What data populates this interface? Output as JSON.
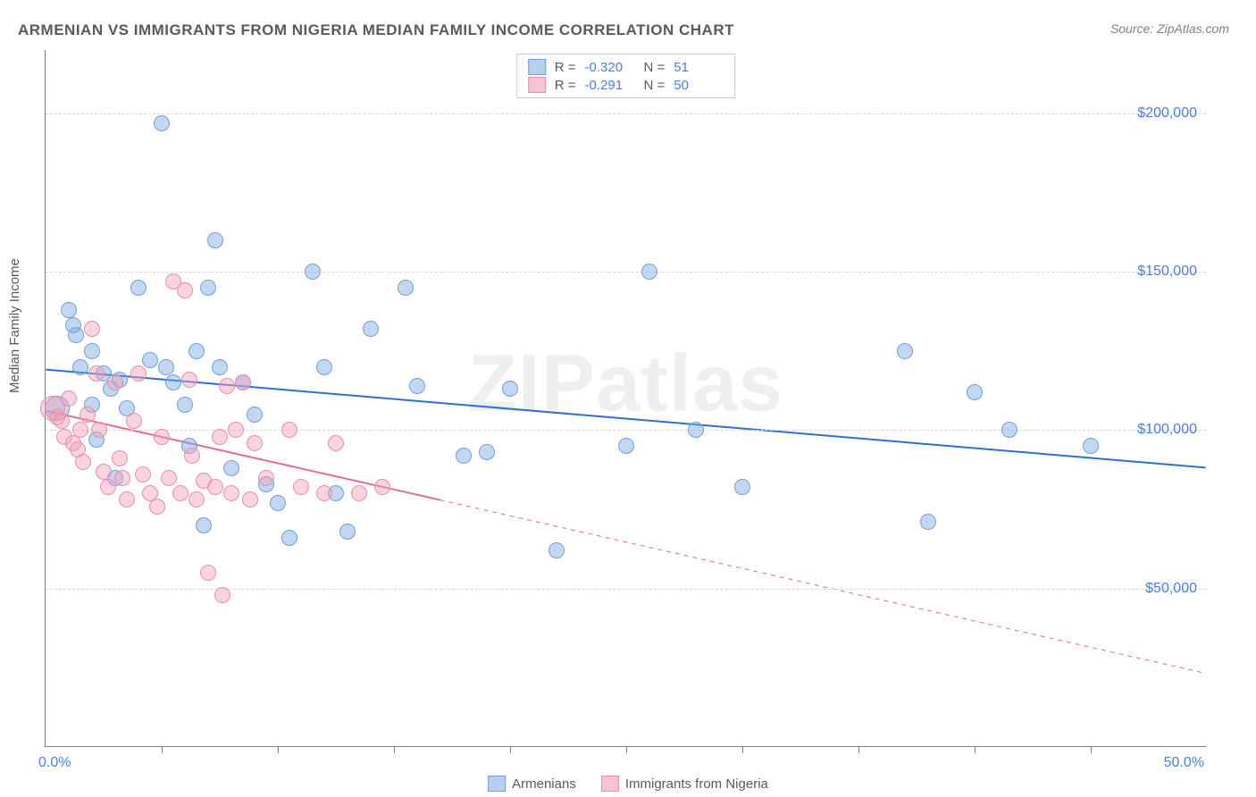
{
  "title": "ARMENIAN VS IMMIGRANTS FROM NIGERIA MEDIAN FAMILY INCOME CORRELATION CHART",
  "source": "Source: ZipAtlas.com",
  "ylabel": "Median Family Income",
  "watermark": "ZIPatlas",
  "chart": {
    "type": "scatter",
    "xlim": [
      0,
      50
    ],
    "ylim": [
      0,
      220000
    ],
    "x_left_label": "0.0%",
    "x_right_label": "50.0%",
    "x_ticks": [
      5,
      10,
      15,
      20,
      25,
      30,
      35,
      40,
      45
    ],
    "y_gridlines": [
      {
        "value": 50000,
        "label": "$50,000"
      },
      {
        "value": 100000,
        "label": "$100,000"
      },
      {
        "value": 150000,
        "label": "$150,000"
      },
      {
        "value": 200000,
        "label": "$200,000"
      }
    ],
    "background_color": "#ffffff",
    "grid_color": "#d8d8d8",
    "axis_color": "#808080",
    "tick_label_color": "#4a7fd8",
    "point_radius": 9,
    "point_radius_large": 14,
    "series": [
      {
        "key": "armenians",
        "label": "Armenians",
        "fill": "rgba(122,167,224,0.45)",
        "stroke": "#6ea0dd",
        "swatch_fill": "#b7d0ef",
        "swatch_stroke": "#6ea0dd",
        "trend": {
          "y0": 119000,
          "y1": 88000,
          "x_solid_end": 50,
          "color": "#2f6fd0",
          "width": 2
        },
        "corr": {
          "R": "-0.320",
          "N": "51"
        },
        "points": [
          {
            "x": 0.5,
            "y": 107000,
            "r": 14
          },
          {
            "x": 1.0,
            "y": 138000
          },
          {
            "x": 1.2,
            "y": 133000
          },
          {
            "x": 1.3,
            "y": 130000
          },
          {
            "x": 1.5,
            "y": 120000
          },
          {
            "x": 2.0,
            "y": 125000
          },
          {
            "x": 2.0,
            "y": 108000
          },
          {
            "x": 2.2,
            "y": 97000
          },
          {
            "x": 2.5,
            "y": 118000
          },
          {
            "x": 2.8,
            "y": 113000
          },
          {
            "x": 3.0,
            "y": 85000
          },
          {
            "x": 3.2,
            "y": 116000
          },
          {
            "x": 3.5,
            "y": 107000
          },
          {
            "x": 4.0,
            "y": 145000
          },
          {
            "x": 4.5,
            "y": 122000
          },
          {
            "x": 5.0,
            "y": 197000
          },
          {
            "x": 5.2,
            "y": 120000
          },
          {
            "x": 5.5,
            "y": 115000
          },
          {
            "x": 6.0,
            "y": 108000
          },
          {
            "x": 6.2,
            "y": 95000
          },
          {
            "x": 6.5,
            "y": 125000
          },
          {
            "x": 6.8,
            "y": 70000
          },
          {
            "x": 7.0,
            "y": 145000
          },
          {
            "x": 7.3,
            "y": 160000
          },
          {
            "x": 7.5,
            "y": 120000
          },
          {
            "x": 8.0,
            "y": 88000
          },
          {
            "x": 8.5,
            "y": 115000
          },
          {
            "x": 9.0,
            "y": 105000
          },
          {
            "x": 9.5,
            "y": 83000
          },
          {
            "x": 10.0,
            "y": 77000
          },
          {
            "x": 10.5,
            "y": 66000
          },
          {
            "x": 11.5,
            "y": 150000
          },
          {
            "x": 12.0,
            "y": 120000
          },
          {
            "x": 12.5,
            "y": 80000
          },
          {
            "x": 13.0,
            "y": 68000
          },
          {
            "x": 14.0,
            "y": 132000
          },
          {
            "x": 15.5,
            "y": 145000
          },
          {
            "x": 16.0,
            "y": 114000
          },
          {
            "x": 18.0,
            "y": 92000
          },
          {
            "x": 19.0,
            "y": 93000
          },
          {
            "x": 20.0,
            "y": 113000
          },
          {
            "x": 22.0,
            "y": 62000
          },
          {
            "x": 25.0,
            "y": 95000
          },
          {
            "x": 26.0,
            "y": 150000
          },
          {
            "x": 28.0,
            "y": 100000
          },
          {
            "x": 30.0,
            "y": 82000
          },
          {
            "x": 37.0,
            "y": 125000
          },
          {
            "x": 38.0,
            "y": 71000
          },
          {
            "x": 40.0,
            "y": 112000
          },
          {
            "x": 41.5,
            "y": 100000
          },
          {
            "x": 45.0,
            "y": 95000
          }
        ]
      },
      {
        "key": "nigeria",
        "label": "Immigrants from Nigeria",
        "fill": "rgba(242,160,185,0.45)",
        "stroke": "#e98fab",
        "swatch_fill": "#f6c3d2",
        "swatch_stroke": "#e98fab",
        "trend": {
          "y0": 106000,
          "y1": 23000,
          "x_solid_end": 17,
          "color": "#e56b90",
          "width": 2
        },
        "corr": {
          "R": "-0.291",
          "N": "50"
        },
        "points": [
          {
            "x": 0.3,
            "y": 107000,
            "r": 14
          },
          {
            "x": 0.5,
            "y": 104000
          },
          {
            "x": 0.7,
            "y": 103000
          },
          {
            "x": 0.8,
            "y": 98000
          },
          {
            "x": 1.0,
            "y": 110000
          },
          {
            "x": 1.2,
            "y": 96000
          },
          {
            "x": 1.4,
            "y": 94000
          },
          {
            "x": 1.5,
            "y": 100000
          },
          {
            "x": 1.6,
            "y": 90000
          },
          {
            "x": 1.8,
            "y": 105000
          },
          {
            "x": 2.0,
            "y": 132000
          },
          {
            "x": 2.2,
            "y": 118000
          },
          {
            "x": 2.3,
            "y": 100000
          },
          {
            "x": 2.5,
            "y": 87000
          },
          {
            "x": 2.7,
            "y": 82000
          },
          {
            "x": 3.0,
            "y": 115000
          },
          {
            "x": 3.2,
            "y": 91000
          },
          {
            "x": 3.3,
            "y": 85000
          },
          {
            "x": 3.5,
            "y": 78000
          },
          {
            "x": 3.8,
            "y": 103000
          },
          {
            "x": 4.0,
            "y": 118000
          },
          {
            "x": 4.2,
            "y": 86000
          },
          {
            "x": 4.5,
            "y": 80000
          },
          {
            "x": 4.8,
            "y": 76000
          },
          {
            "x": 5.0,
            "y": 98000
          },
          {
            "x": 5.3,
            "y": 85000
          },
          {
            "x": 5.5,
            "y": 147000
          },
          {
            "x": 5.8,
            "y": 80000
          },
          {
            "x": 6.0,
            "y": 144000
          },
          {
            "x": 6.2,
            "y": 116000
          },
          {
            "x": 6.3,
            "y": 92000
          },
          {
            "x": 6.5,
            "y": 78000
          },
          {
            "x": 6.8,
            "y": 84000
          },
          {
            "x": 7.0,
            "y": 55000
          },
          {
            "x": 7.3,
            "y": 82000
          },
          {
            "x": 7.5,
            "y": 98000
          },
          {
            "x": 7.6,
            "y": 48000
          },
          {
            "x": 7.8,
            "y": 114000
          },
          {
            "x": 8.0,
            "y": 80000
          },
          {
            "x": 8.2,
            "y": 100000
          },
          {
            "x": 8.5,
            "y": 115000
          },
          {
            "x": 8.8,
            "y": 78000
          },
          {
            "x": 9.0,
            "y": 96000
          },
          {
            "x": 9.5,
            "y": 85000
          },
          {
            "x": 10.5,
            "y": 100000
          },
          {
            "x": 11.0,
            "y": 82000
          },
          {
            "x": 12.0,
            "y": 80000
          },
          {
            "x": 12.5,
            "y": 96000
          },
          {
            "x": 13.5,
            "y": 80000
          },
          {
            "x": 14.5,
            "y": 82000
          }
        ]
      }
    ]
  },
  "corr_labels": {
    "R": "R =",
    "N": "N ="
  }
}
